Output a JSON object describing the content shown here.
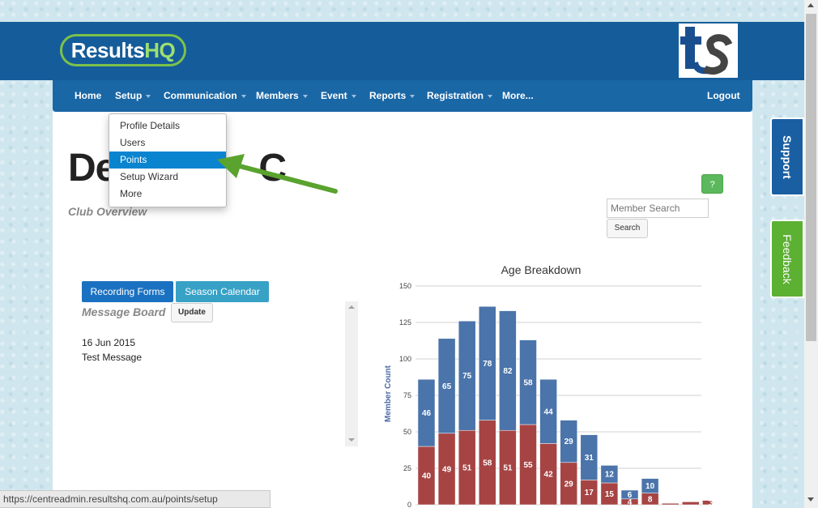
{
  "header": {
    "logo_text_results": "Results",
    "logo_text_hq": "HQ",
    "partner_logo_text": "ts"
  },
  "nav": {
    "items": [
      {
        "label": "Home",
        "dropdown": false
      },
      {
        "label": "Setup",
        "dropdown": true
      },
      {
        "label": "Communication",
        "dropdown": true
      },
      {
        "label": "Members",
        "dropdown": true
      },
      {
        "label": "Event",
        "dropdown": true
      },
      {
        "label": "Reports",
        "dropdown": true
      },
      {
        "label": "Registration",
        "dropdown": true
      },
      {
        "label": "More...",
        "dropdown": false
      }
    ],
    "logout_label": "Logout"
  },
  "setup_menu": {
    "items": [
      "Profile Details",
      "Users",
      "Points",
      "Setup Wizard",
      "More"
    ],
    "active_item": "Points"
  },
  "page": {
    "title": "De",
    "title_tail": "C",
    "subtitle": "Club Overview"
  },
  "help_label": "?",
  "search": {
    "placeholder": "Member Search",
    "button_label": "Search"
  },
  "actions": {
    "recording_forms": "Recording Forms",
    "season_calendar": "Season Calendar"
  },
  "message_board": {
    "title": "Message Board",
    "update_label": "Update",
    "messages": [
      {
        "date": "16 Jun 2015",
        "text": "Test Message"
      }
    ]
  },
  "side_tabs": {
    "support": "Support",
    "feedback": "Feedback"
  },
  "status_bar": {
    "url": "https://centreadmin.resultshq.com.au/points/setup"
  },
  "colors": {
    "brand_blue": "#155d9a",
    "nav_blue": "#1a67a6",
    "active_item": "#0a84cf",
    "arrow_green": "#5aa32e",
    "series_red": "#a64444",
    "series_blue": "#4a74aa"
  },
  "chart_data": {
    "type": "bar",
    "stacked": true,
    "title": "Age Breakdown",
    "ylabel": "Member Count",
    "ylim": [
      0,
      150
    ],
    "yticks": [
      0,
      25,
      50,
      75,
      100,
      125,
      150
    ],
    "grid": true,
    "series": [
      {
        "values": [
          40,
          49,
          51,
          58,
          51,
          55,
          42,
          29,
          17,
          15,
          4,
          8,
          1,
          2,
          3
        ],
        "color": "#a64444"
      },
      {
        "values": [
          46,
          65,
          75,
          78,
          82,
          58,
          44,
          29,
          31,
          12,
          6,
          10,
          0,
          0,
          0
        ],
        "color": "#4a74aa"
      }
    ]
  }
}
